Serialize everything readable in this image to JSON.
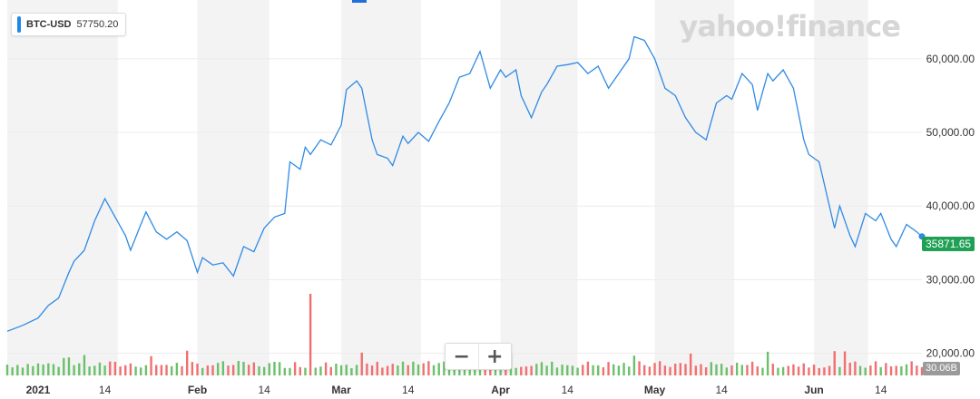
{
  "legend": {
    "symbol": "BTC-USD",
    "value": "57750.20"
  },
  "brand": "yahoo!finance",
  "zoom": {
    "minus": "−",
    "plus": "+"
  },
  "last_price_label": "35871.65",
  "volume_label": "30.06B",
  "colors": {
    "line": "#2f8ae6",
    "up": "#6cc06c",
    "down": "#f07070",
    "band": "#f3f3f3",
    "badge": "#1fa055"
  },
  "chart_data": {
    "type": "line",
    "series": [
      {
        "name": "BTC-USD"
      }
    ],
    "y_axis": {
      "range": [
        17000,
        67000
      ],
      "ticks": [
        20000,
        30000,
        40000,
        50000,
        60000
      ],
      "tick_labels": [
        "20,000.00",
        "30,000.00",
        "40,000.00",
        "50,000.00",
        "60,000.00"
      ]
    },
    "x_axis": {
      "range": [
        "2020-12-26",
        "2021-06-22"
      ],
      "tick_dates": [
        "2021-01-01",
        "2021-01-14",
        "2021-02-01",
        "2021-02-14",
        "2021-03-01",
        "2021-03-14",
        "2021-04-01",
        "2021-04-14",
        "2021-05-01",
        "2021-05-14",
        "2021-06-01",
        "2021-06-14"
      ],
      "tick_labels": [
        "2021",
        "14",
        "Feb",
        "14",
        "Mar",
        "14",
        "Apr",
        "14",
        "May",
        "14",
        "Jun",
        "14"
      ]
    },
    "points": [
      [
        "2020-12-26",
        23000
      ],
      [
        "2020-12-29",
        23800
      ],
      [
        "2021-01-01",
        24800
      ],
      [
        "2021-01-03",
        26500
      ],
      [
        "2021-01-05",
        27500
      ],
      [
        "2021-01-07",
        31000
      ],
      [
        "2021-01-08",
        32500
      ],
      [
        "2021-01-10",
        34000
      ],
      [
        "2021-01-12",
        38000
      ],
      [
        "2021-01-14",
        41000
      ],
      [
        "2021-01-16",
        38500
      ],
      [
        "2021-01-18",
        36000
      ],
      [
        "2021-01-19",
        34000
      ],
      [
        "2021-01-21",
        37500
      ],
      [
        "2021-01-22",
        39200
      ],
      [
        "2021-01-24",
        36500
      ],
      [
        "2021-01-26",
        35500
      ],
      [
        "2021-01-28",
        36500
      ],
      [
        "2021-01-30",
        35300
      ],
      [
        "2021-02-01",
        31000
      ],
      [
        "2021-02-02",
        33000
      ],
      [
        "2021-02-04",
        32000
      ],
      [
        "2021-02-06",
        32300
      ],
      [
        "2021-02-08",
        30500
      ],
      [
        "2021-02-10",
        34500
      ],
      [
        "2021-02-12",
        33800
      ],
      [
        "2021-02-14",
        37000
      ],
      [
        "2021-02-16",
        38500
      ],
      [
        "2021-02-18",
        39000
      ],
      [
        "2021-02-19",
        46000
      ],
      [
        "2021-02-21",
        45000
      ],
      [
        "2021-02-22",
        48000
      ],
      [
        "2021-02-23",
        47000
      ],
      [
        "2021-02-25",
        49000
      ],
      [
        "2021-02-27",
        48300
      ],
      [
        "2021-03-01",
        51000
      ],
      [
        "2021-03-02",
        55800
      ],
      [
        "2021-03-04",
        57000
      ],
      [
        "2021-03-05",
        56000
      ],
      [
        "2021-03-07",
        49000
      ],
      [
        "2021-03-08",
        47000
      ],
      [
        "2021-03-10",
        46500
      ],
      [
        "2021-03-11",
        45500
      ],
      [
        "2021-03-13",
        49500
      ],
      [
        "2021-03-14",
        48500
      ],
      [
        "2021-03-16",
        50000
      ],
      [
        "2021-03-18",
        48800
      ],
      [
        "2021-03-20",
        51500
      ],
      [
        "2021-03-22",
        54000
      ],
      [
        "2021-03-24",
        57500
      ],
      [
        "2021-03-26",
        58000
      ],
      [
        "2021-03-28",
        61000
      ],
      [
        "2021-03-30",
        56000
      ],
      [
        "2021-04-01",
        58500
      ],
      [
        "2021-04-02",
        57500
      ],
      [
        "2021-04-04",
        58500
      ],
      [
        "2021-04-05",
        55000
      ],
      [
        "2021-04-07",
        52000
      ],
      [
        "2021-04-09",
        55500
      ],
      [
        "2021-04-10",
        56500
      ],
      [
        "2021-04-12",
        59000
      ],
      [
        "2021-04-14",
        59200
      ],
      [
        "2021-04-16",
        59500
      ],
      [
        "2021-04-18",
        58000
      ],
      [
        "2021-04-20",
        59000
      ],
      [
        "2021-04-22",
        56000
      ],
      [
        "2021-04-24",
        58000
      ],
      [
        "2021-04-26",
        60000
      ],
      [
        "2021-04-27",
        63000
      ],
      [
        "2021-04-29",
        62500
      ],
      [
        "2021-05-01",
        60000
      ],
      [
        "2021-05-03",
        56000
      ],
      [
        "2021-05-05",
        55000
      ],
      [
        "2021-05-07",
        52000
      ],
      [
        "2021-05-09",
        50000
      ],
      [
        "2021-05-11",
        49000
      ],
      [
        "2021-05-13",
        54000
      ],
      [
        "2021-05-15",
        55000
      ],
      [
        "2021-05-16",
        54500
      ],
      [
        "2021-05-18",
        58000
      ],
      [
        "2021-05-20",
        56500
      ],
      [
        "2021-05-21",
        53000
      ],
      [
        "2021-05-23",
        58000
      ],
      [
        "2021-05-24",
        57000
      ],
      [
        "2021-05-26",
        58500
      ],
      [
        "2021-05-28",
        56000
      ],
      [
        "2021-05-30",
        49000
      ],
      [
        "2021-05-31",
        47000
      ],
      [
        "2021-06-02",
        46000
      ],
      [
        "2021-06-03",
        43000
      ],
      [
        "2021-06-05",
        37000
      ],
      [
        "2021-06-06",
        40000
      ],
      [
        "2021-06-08",
        36000
      ],
      [
        "2021-06-09",
        34500
      ],
      [
        "2021-06-11",
        39000
      ],
      [
        "2021-06-13",
        38000
      ],
      [
        "2021-06-14",
        39000
      ],
      [
        "2021-06-16",
        35500
      ],
      [
        "2021-06-17",
        34500
      ],
      [
        "2021-06-19",
        37500
      ],
      [
        "2021-06-21",
        36500
      ],
      [
        "2021-06-22",
        35871.65
      ]
    ],
    "grid": true,
    "volume": {
      "label": "30.06B"
    }
  }
}
